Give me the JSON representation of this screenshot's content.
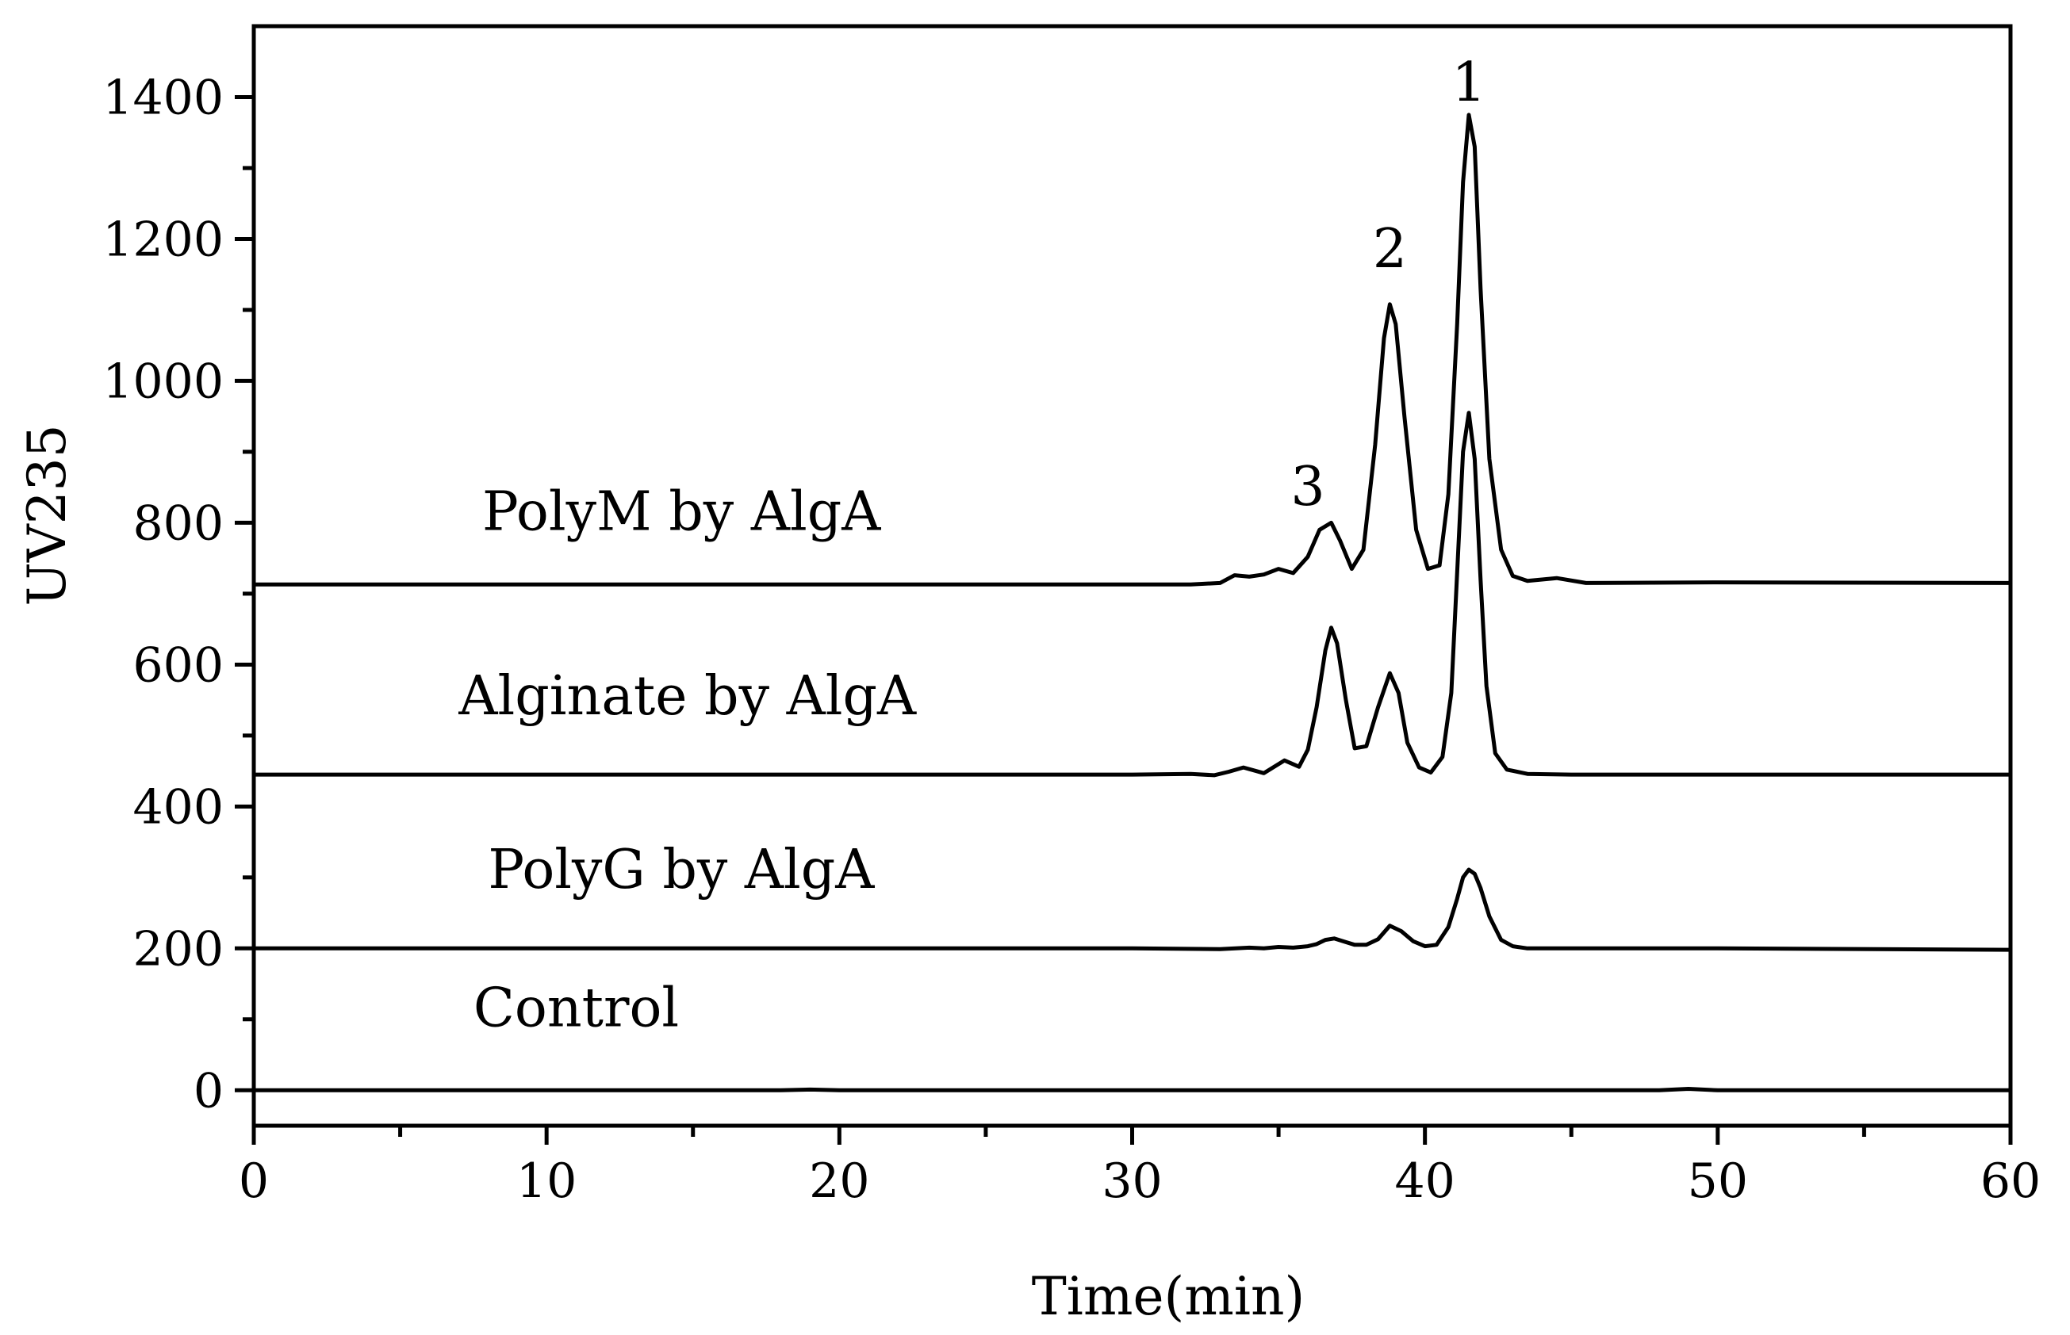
{
  "chart_data": {
    "type": "line",
    "title": "",
    "xlabel": "Time(min)",
    "ylabel": "UV235",
    "xlim": [
      0,
      60
    ],
    "ylim": [
      -50,
      1500
    ],
    "x_ticks": [
      0,
      10,
      20,
      30,
      40,
      50,
      60
    ],
    "y_ticks": [
      0,
      200,
      400,
      600,
      800,
      1000,
      1200,
      1400
    ],
    "grid": false,
    "legend": "none",
    "series": [
      {
        "name": "Control",
        "color": "#000000",
        "x": [
          0,
          18,
          19,
          20,
          30,
          40,
          48,
          49,
          50,
          60
        ],
        "y": [
          0,
          0,
          1,
          0,
          0,
          0,
          0,
          2,
          0,
          0
        ]
      },
      {
        "name": "PolyG by AlgA",
        "color": "#000000",
        "x": [
          0,
          30,
          33,
          34,
          34.5,
          35,
          35.5,
          36,
          36.3,
          36.6,
          36.9,
          37.2,
          37.6,
          38,
          38.4,
          38.8,
          39.2,
          39.6,
          40,
          40.4,
          40.8,
          41.1,
          41.3,
          41.5,
          41.7,
          41.9,
          42.2,
          42.6,
          43,
          43.5,
          45,
          50,
          60
        ],
        "y": [
          200,
          200,
          199,
          201,
          200,
          202,
          201,
          203,
          206,
          212,
          214,
          210,
          205,
          205,
          213,
          232,
          224,
          210,
          203,
          205,
          230,
          270,
          300,
          311,
          305,
          285,
          245,
          212,
          203,
          200,
          200,
          200,
          198
        ]
      },
      {
        "name": "Alginate by AlgA",
        "color": "#000000",
        "x": [
          0,
          30,
          32,
          32.8,
          33.3,
          33.8,
          34.5,
          35.2,
          35.7,
          36,
          36.3,
          36.6,
          36.8,
          37,
          37.3,
          37.6,
          38,
          38.4,
          38.8,
          39.1,
          39.4,
          39.8,
          40.2,
          40.6,
          40.9,
          41.1,
          41.3,
          41.5,
          41.7,
          41.9,
          42.1,
          42.4,
          42.8,
          43.5,
          45,
          50,
          60
        ],
        "y": [
          445,
          445,
          446,
          444,
          449,
          455,
          447,
          465,
          456,
          480,
          540,
          620,
          652,
          630,
          550,
          482,
          485,
          540,
          588,
          560,
          490,
          455,
          448,
          470,
          560,
          730,
          900,
          955,
          890,
          720,
          570,
          475,
          452,
          446,
          445,
          445,
          445
        ]
      },
      {
        "name": "PolyM by AlgA",
        "color": "#000000",
        "x": [
          0,
          30,
          32,
          33,
          33.5,
          34,
          34.5,
          35,
          35.5,
          36,
          36.4,
          36.8,
          37.1,
          37.5,
          37.9,
          38.3,
          38.6,
          38.8,
          39,
          39.3,
          39.7,
          40.1,
          40.5,
          40.8,
          41.1,
          41.3,
          41.5,
          41.7,
          41.9,
          42.2,
          42.6,
          43,
          43.5,
          44.5,
          45.5,
          50,
          60
        ],
        "y": [
          713,
          713,
          713,
          715,
          726,
          724,
          727,
          735,
          729,
          752,
          790,
          800,
          775,
          735,
          762,
          910,
          1060,
          1108,
          1080,
          950,
          790,
          735,
          740,
          840,
          1080,
          1280,
          1375,
          1330,
          1130,
          890,
          762,
          725,
          718,
          722,
          715,
          716,
          715
        ]
      }
    ],
    "series_labels": [
      {
        "series": "PolyM by AlgA",
        "text": "PolyM by AlgA",
        "x": 7.8,
        "y": 790
      },
      {
        "series": "Alginate by AlgA",
        "text": "Alginate by AlgA",
        "x": 7.0,
        "y": 530
      },
      {
        "series": "PolyG by AlgA",
        "text": "PolyG by AlgA",
        "x": 8.0,
        "y": 285
      },
      {
        "series": "Control",
        "text": "Control",
        "x": 7.5,
        "y": 90
      }
    ],
    "annotations": [
      {
        "text": "1",
        "x": 41.5,
        "y": 1395
      },
      {
        "text": "2",
        "x": 38.8,
        "y": 1160
      },
      {
        "text": "3",
        "x": 36.0,
        "y": 825
      }
    ]
  }
}
